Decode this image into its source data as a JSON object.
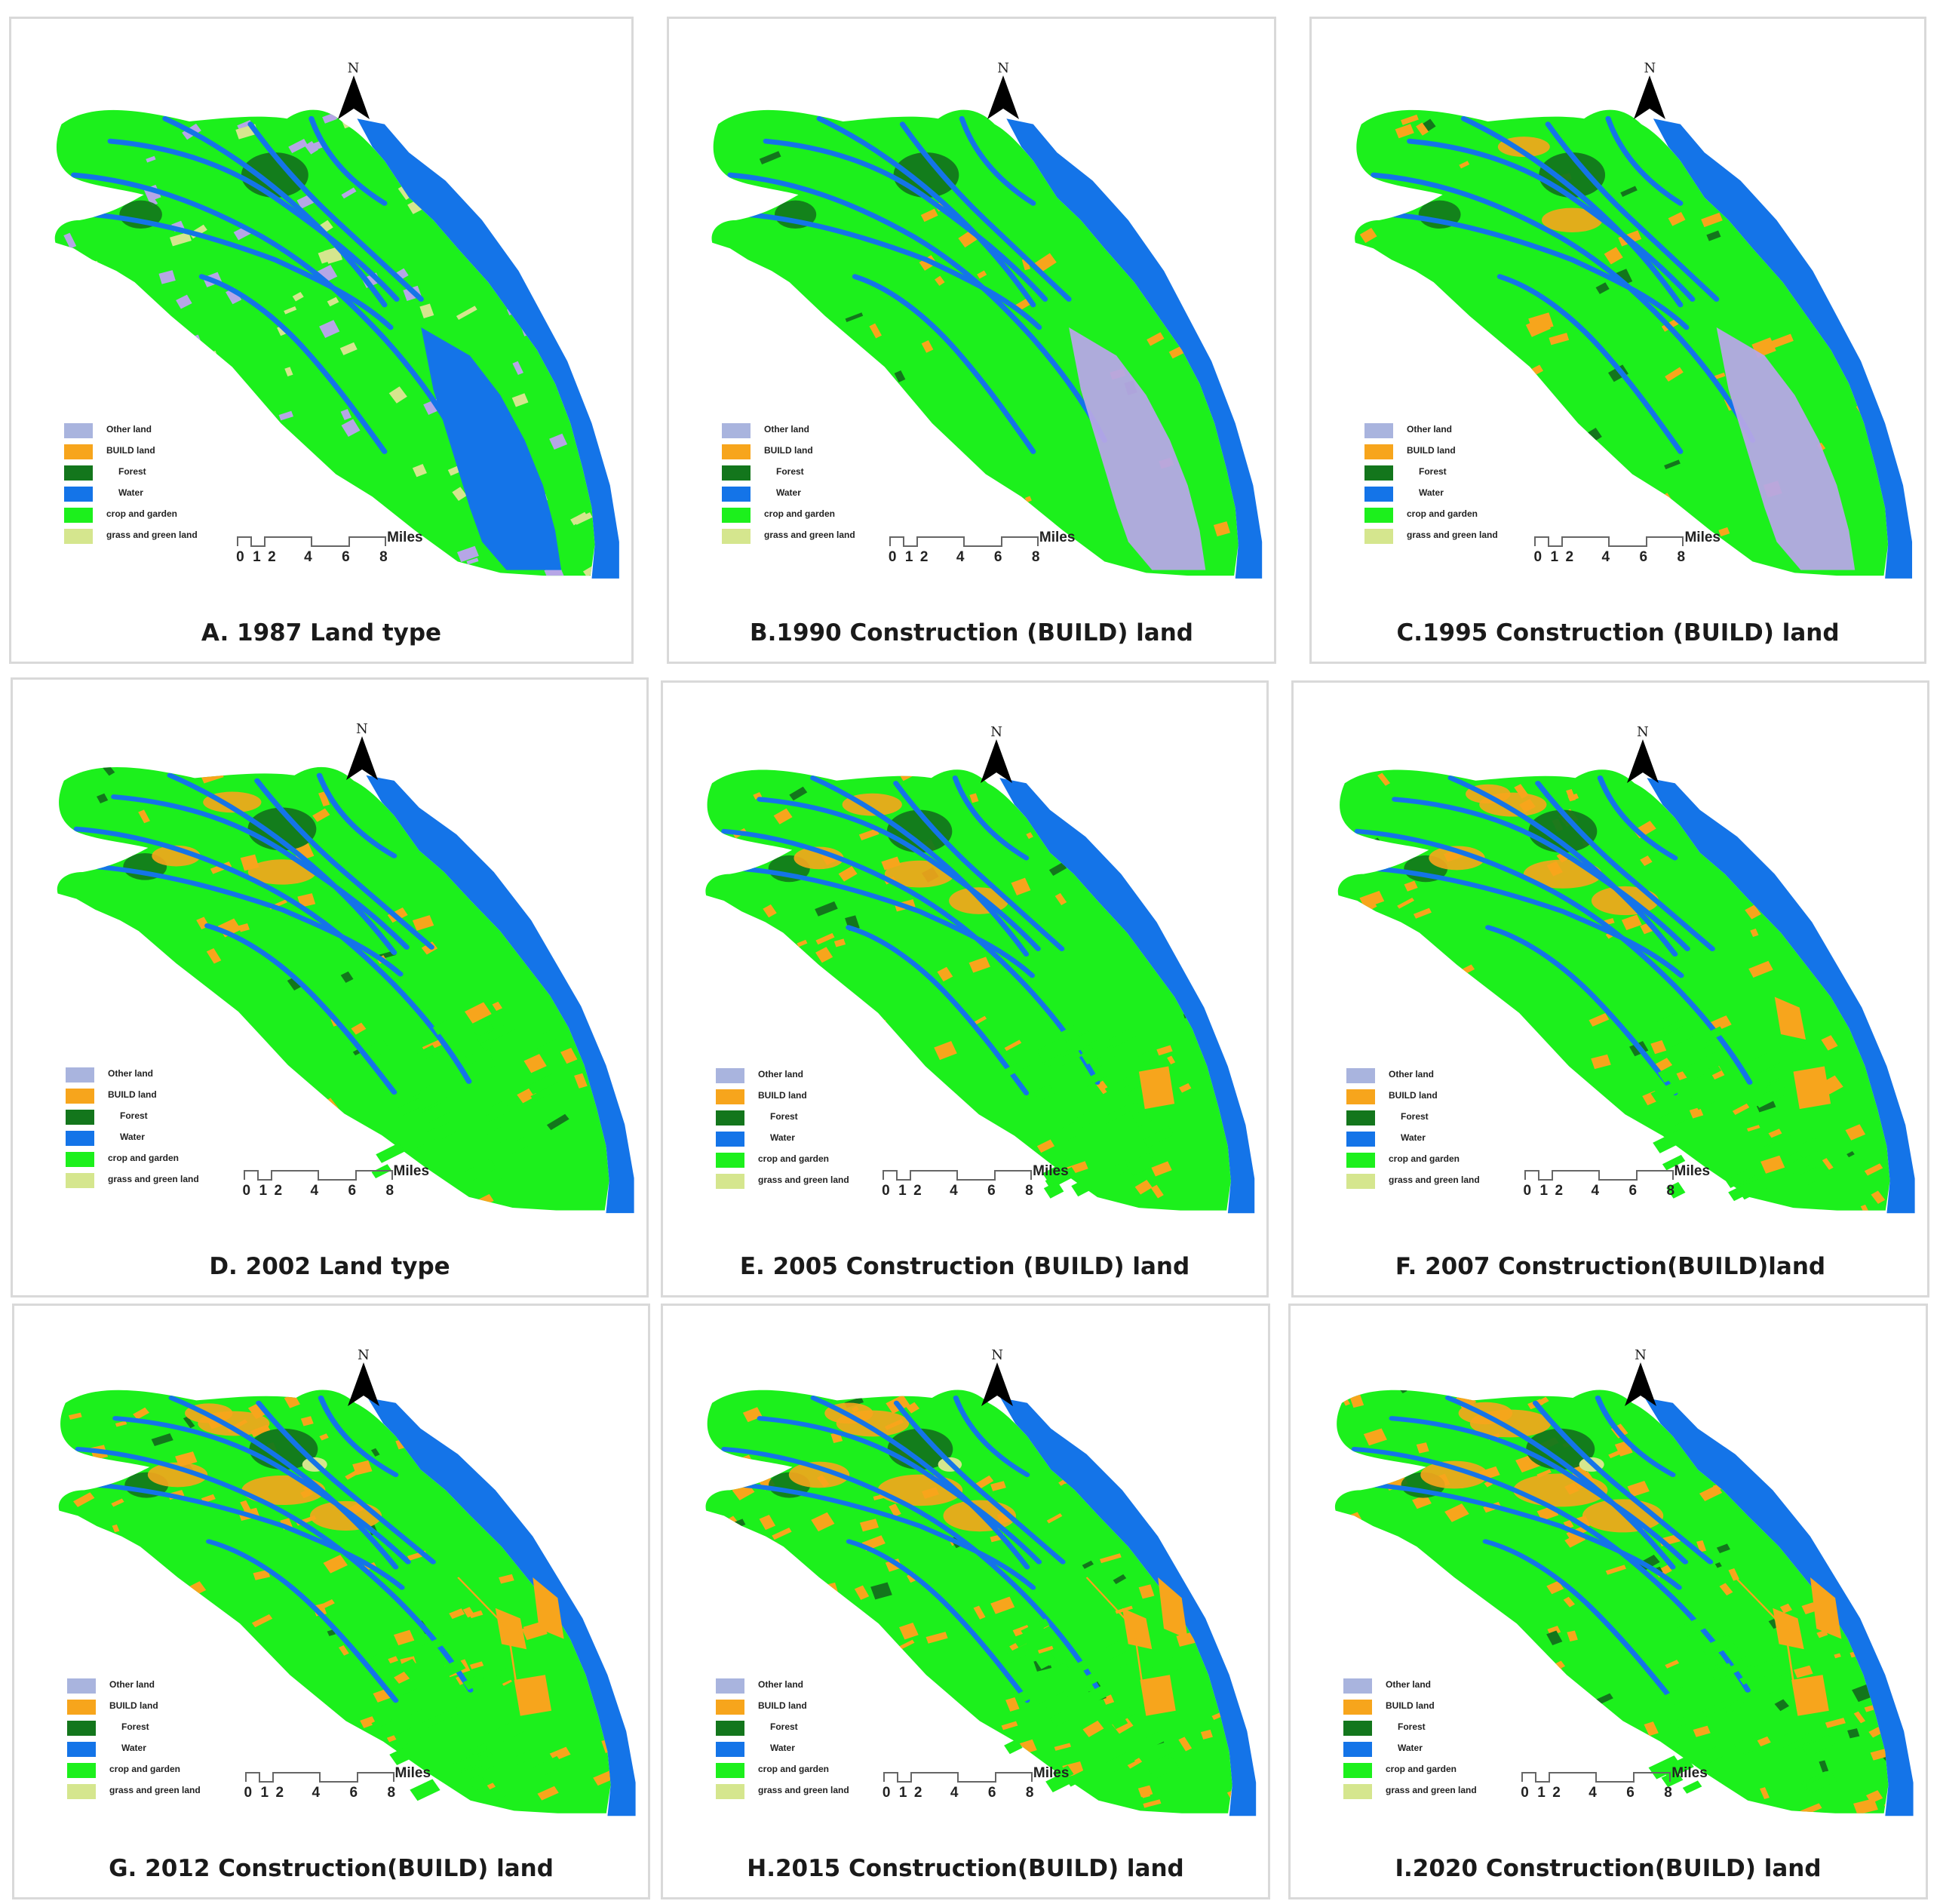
{
  "panels": [
    {
      "caption": "A. 1987 Land type",
      "stage": 0
    },
    {
      "caption": "B.1990 Construction (BUILD) land",
      "stage": 1
    },
    {
      "caption": "C.1995 Construction (BUILD) land",
      "stage": 2
    },
    {
      "caption": "D. 2002 Land type",
      "stage": 3
    },
    {
      "caption": "E. 2005 Construction (BUILD) land",
      "stage": 4
    },
    {
      "caption": "F. 2007 Construction(BUILD)land",
      "stage": 5
    },
    {
      "caption": "G. 2012 Construction(BUILD) land",
      "stage": 6
    },
    {
      "caption": "H.2015 Construction(BUILD) land",
      "stage": 7
    },
    {
      "caption": "I.2020 Construction(BUILD) land",
      "stage": 8
    }
  ],
  "legend": [
    {
      "label": "Other land",
      "color": "#a9b4de",
      "indent": false
    },
    {
      "label": "BUILD land",
      "color": "#f7a51c",
      "indent": false
    },
    {
      "label": "Forest",
      "color": "#13761c",
      "indent": true
    },
    {
      "label": "Water",
      "color": "#1474e8",
      "indent": true
    },
    {
      "label": "crop and garden",
      "color": "#1cf01c",
      "indent": false
    },
    {
      "label": "grass and green land",
      "color": "#d5e68e",
      "indent": false
    }
  ],
  "north_label": "N",
  "scale": {
    "ticks": [
      "0",
      "1",
      "2",
      "4",
      "6",
      "8"
    ],
    "unit": "Miles"
  },
  "colors": {
    "water": "#1474e8",
    "crop": "#1cf01c",
    "build": "#f7a51c",
    "forest": "#13761c",
    "other": "#b6a6e6",
    "grass": "#d5e68e"
  }
}
